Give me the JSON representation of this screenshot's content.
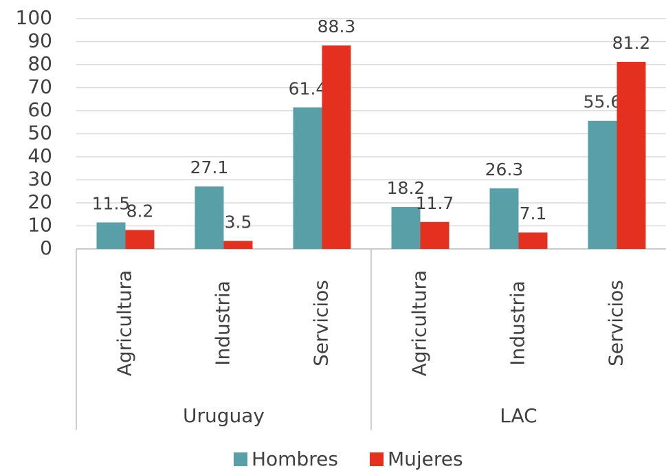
{
  "chart_data": {
    "type": "bar",
    "categories": [
      "Agricultura",
      "Industria",
      "Servicios",
      "Agricultura",
      "Industria",
      "Servicios"
    ],
    "groups": [
      "Uruguay",
      "LAC"
    ],
    "series": [
      {
        "name": "Hombres",
        "color": "#589fa8",
        "values": [
          11.5,
          27.1,
          61.4,
          18.2,
          26.3,
          55.6
        ]
      },
      {
        "name": "Mujeres",
        "color": "#e3301f",
        "values": [
          8.2,
          3.5,
          88.3,
          11.7,
          7.1,
          81.2
        ]
      }
    ],
    "ylim": [
      0,
      100
    ],
    "yticks": [
      0,
      10,
      20,
      30,
      40,
      50,
      60,
      70,
      80,
      90,
      100
    ],
    "grid": true,
    "legend": "bottom"
  }
}
